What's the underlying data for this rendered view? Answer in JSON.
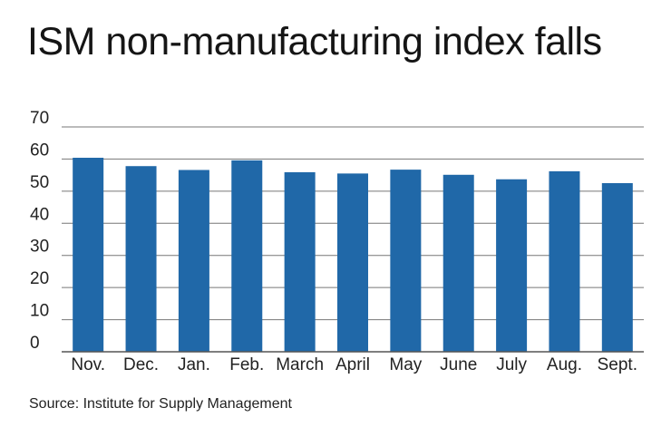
{
  "title": "ISM non-manufacturing index falls",
  "source": "Source: Institute for Supply Management",
  "colors": {
    "bar": "#2068a8",
    "grid": "#777777",
    "axis": "#555555",
    "text": "#222222"
  },
  "chart_data": {
    "type": "bar",
    "title": "ISM non-manufacturing index falls",
    "xlabel": "",
    "ylabel": "",
    "categories": [
      "Nov.",
      "Dec.",
      "Jan.",
      "Feb.",
      "March",
      "April",
      "May",
      "June",
      "July",
      "Aug.",
      "Sept."
    ],
    "values": [
      60.4,
      57.8,
      56.6,
      59.6,
      55.9,
      55.5,
      56.7,
      55.1,
      53.7,
      56.2,
      52.5
    ],
    "ylim": [
      0,
      70
    ],
    "yticks": [
      0,
      10,
      20,
      30,
      40,
      50,
      60,
      70
    ],
    "grid": true,
    "legend": "none"
  }
}
